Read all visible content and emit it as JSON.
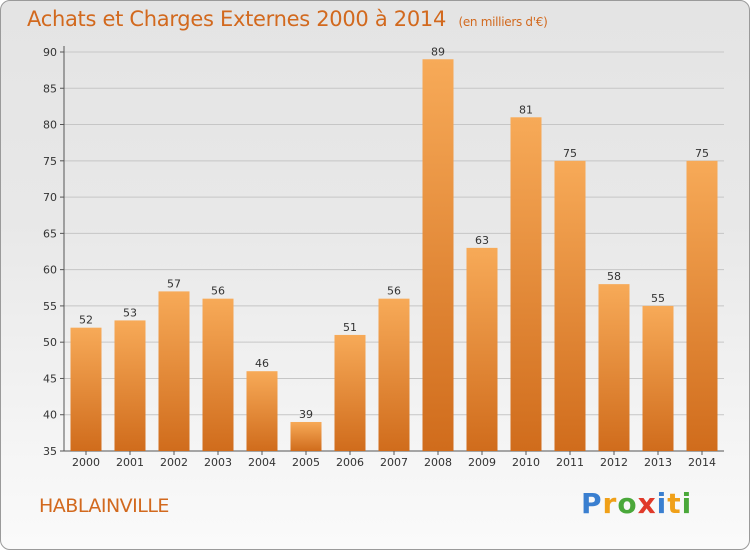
{
  "header": {
    "title": "Achats et Charges Externes 2000 à 2014",
    "subtitle": "(en milliers d'€)"
  },
  "commune": "HABLAINVILLE",
  "logo": {
    "letters": [
      "P",
      "r",
      "o",
      "x",
      "i",
      "t",
      "i"
    ]
  },
  "colors": {
    "accent": "#d2691e",
    "bar_light": "#f6a856",
    "bar_dark": "#d2691e"
  },
  "chart_data": {
    "type": "bar",
    "title": "Achats et Charges Externes 2000 à 2014",
    "subtitle": "(en milliers d'€)",
    "categories": [
      "2000",
      "2001",
      "2002",
      "2003",
      "2004",
      "2005",
      "2006",
      "2007",
      "2008",
      "2009",
      "2010",
      "2011",
      "2012",
      "2013",
      "2014"
    ],
    "values": [
      52,
      53,
      57,
      56,
      46,
      39,
      51,
      56,
      89,
      63,
      81,
      75,
      58,
      55,
      75
    ],
    "yticks": [
      35,
      40,
      45,
      50,
      55,
      60,
      65,
      70,
      75,
      80,
      85,
      90
    ],
    "ylim": [
      35,
      90
    ],
    "grid": true,
    "xlabel": "",
    "ylabel": ""
  }
}
